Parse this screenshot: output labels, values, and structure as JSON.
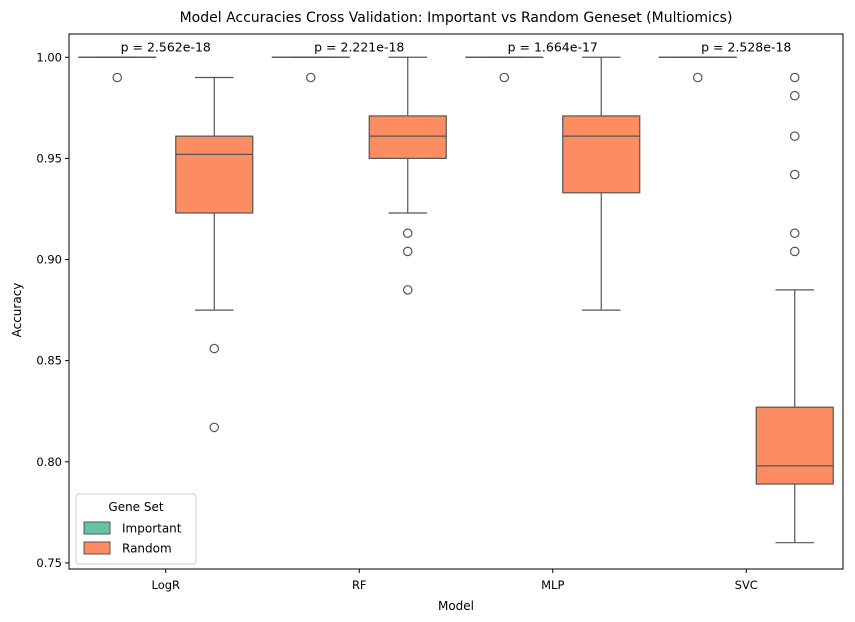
{
  "chart_data": {
    "type": "box",
    "title": "Model Accuracies Cross Validation: Important vs Random Geneset (Multiomics)",
    "xlabel": "Model",
    "ylabel": "Accuracy",
    "categories": [
      "LogR",
      "RF",
      "MLP",
      "SVC"
    ],
    "ylim": [
      0.747,
      1.0115
    ],
    "yticks": [
      0.75,
      0.8,
      0.85,
      0.9,
      0.95,
      1.0
    ],
    "ytick_labels": [
      "0.75",
      "0.80",
      "0.85",
      "0.90",
      "0.95",
      "1.00"
    ],
    "grid": false,
    "legend": {
      "title": "Gene Set",
      "placement": "lower-left",
      "entries": [
        "Important",
        "Random"
      ]
    },
    "colors": {
      "Important": "#66c2a5",
      "Random": "#fc8d62",
      "line": "#555555"
    },
    "series": [
      {
        "name": "Important",
        "boxes": [
          {
            "min": 1.0,
            "q1": 1.0,
            "median": 1.0,
            "q3": 1.0,
            "max": 1.0,
            "outliers": [
              0.99
            ]
          },
          {
            "min": 1.0,
            "q1": 1.0,
            "median": 1.0,
            "q3": 1.0,
            "max": 1.0,
            "outliers": [
              0.99
            ]
          },
          {
            "min": 1.0,
            "q1": 1.0,
            "median": 1.0,
            "q3": 1.0,
            "max": 1.0,
            "outliers": [
              0.99
            ]
          },
          {
            "min": 1.0,
            "q1": 1.0,
            "median": 1.0,
            "q3": 1.0,
            "max": 1.0,
            "outliers": [
              0.99
            ]
          }
        ]
      },
      {
        "name": "Random",
        "boxes": [
          {
            "min": 0.875,
            "q1": 0.923,
            "median": 0.952,
            "q3": 0.961,
            "max": 0.99,
            "outliers": [
              0.856,
              0.817
            ]
          },
          {
            "min": 0.923,
            "q1": 0.95,
            "median": 0.961,
            "q3": 0.971,
            "max": 1.0,
            "outliers": [
              0.913,
              0.904,
              0.885
            ]
          },
          {
            "min": 0.875,
            "q1": 0.933,
            "median": 0.961,
            "q3": 0.971,
            "max": 1.0,
            "outliers": []
          },
          {
            "min": 0.76,
            "q1": 0.789,
            "median": 0.798,
            "q3": 0.827,
            "max": 0.885,
            "outliers": [
              0.99,
              0.981,
              0.961,
              0.942,
              0.913,
              0.904
            ]
          }
        ]
      }
    ],
    "annotations": [
      {
        "category": "LogR",
        "text": "p = 2.562e-18"
      },
      {
        "category": "RF",
        "text": "p = 2.221e-18"
      },
      {
        "category": "MLP",
        "text": "p = 1.664e-17"
      },
      {
        "category": "SVC",
        "text": "p = 2.528e-18"
      }
    ]
  }
}
